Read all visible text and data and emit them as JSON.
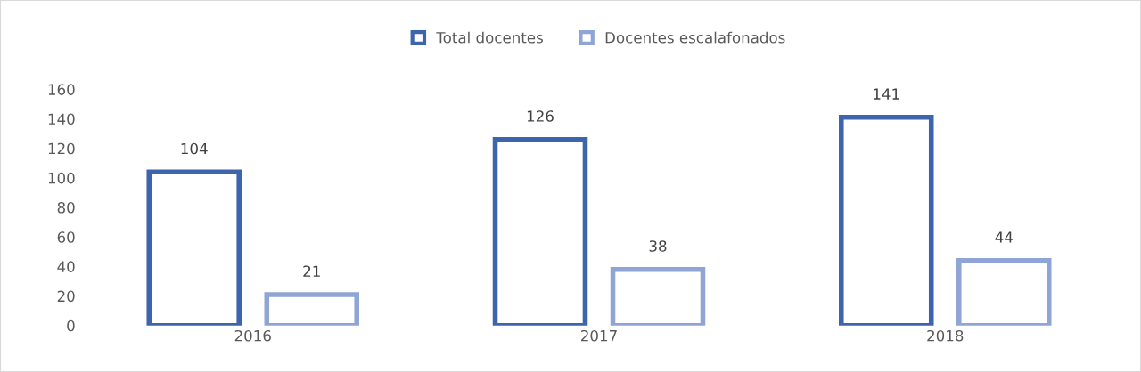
{
  "chart_data": {
    "type": "bar",
    "categories": [
      "2016",
      "2017",
      "2018"
    ],
    "series": [
      {
        "name": "Total docentes",
        "color": "#3d64ad",
        "values": [
          104,
          126,
          141
        ]
      },
      {
        "name": "Docentes escalafonados",
        "color": "#8fa5d6",
        "values": [
          21,
          38,
          44
        ]
      }
    ],
    "ylim": [
      0,
      160
    ],
    "yticks": [
      0,
      20,
      40,
      60,
      80,
      100,
      120,
      140,
      160
    ],
    "data_labels": true,
    "legend": "top"
  }
}
